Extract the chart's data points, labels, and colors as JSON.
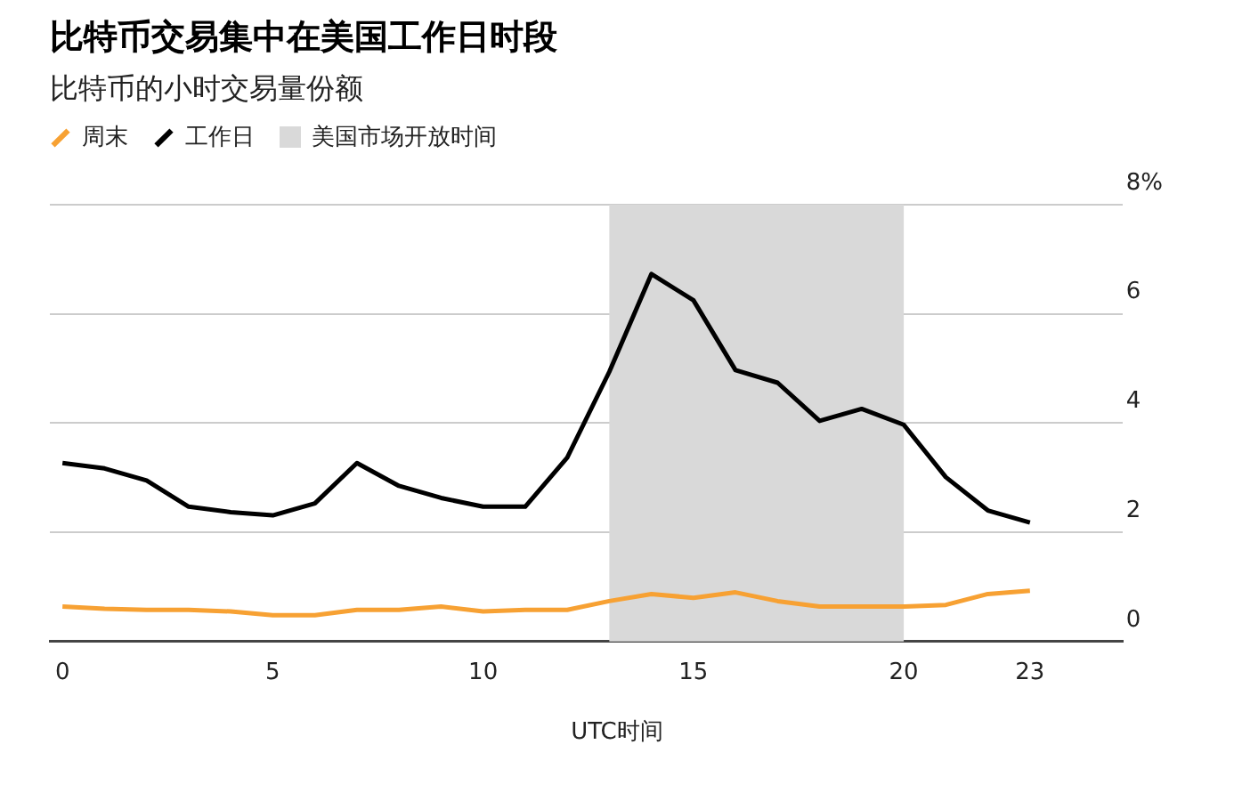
{
  "chart_data": {
    "type": "line",
    "title": "比特币交易集中在美国工作日时段",
    "subtitle": "比特币的小时交易量份额",
    "xlabel": "UTC时间",
    "x": [
      0,
      1,
      2,
      3,
      4,
      5,
      6,
      7,
      8,
      9,
      10,
      11,
      12,
      13,
      14,
      15,
      16,
      17,
      18,
      19,
      20,
      21,
      22,
      23
    ],
    "series": [
      {
        "name": "周末",
        "color": "#f7a133",
        "values": [
          0.64,
          0.6,
          0.58,
          0.58,
          0.55,
          0.48,
          0.48,
          0.58,
          0.58,
          0.64,
          0.55,
          0.58,
          0.58,
          0.74,
          0.87,
          0.8,
          0.9,
          0.74,
          0.64,
          0.64,
          0.64,
          0.67,
          0.87,
          0.93
        ]
      },
      {
        "name": "工作日",
        "color": "#000000",
        "values": [
          3.27,
          3.17,
          2.95,
          2.47,
          2.37,
          2.31,
          2.53,
          3.27,
          2.85,
          2.63,
          2.47,
          2.47,
          3.37,
          4.94,
          6.73,
          6.25,
          4.97,
          4.74,
          4.04,
          4.26,
          3.97,
          3.01,
          2.4,
          2.18
        ]
      }
    ],
    "bands": [
      {
        "axis": "x",
        "from": 13,
        "to": 20,
        "label": "美国市场开放时间",
        "color": "#d9d9d9"
      }
    ],
    "xlim": [
      -0.3,
      25.2
    ],
    "xticks": [
      0,
      5,
      10,
      15,
      20,
      23
    ],
    "ylim": [
      0,
      8
    ],
    "yticks": [
      0,
      2,
      4,
      6,
      {
        "value": 8,
        "label": "8%"
      }
    ],
    "grid": "y",
    "legend": "top left",
    "marker": "none",
    "line_style": "solid"
  }
}
